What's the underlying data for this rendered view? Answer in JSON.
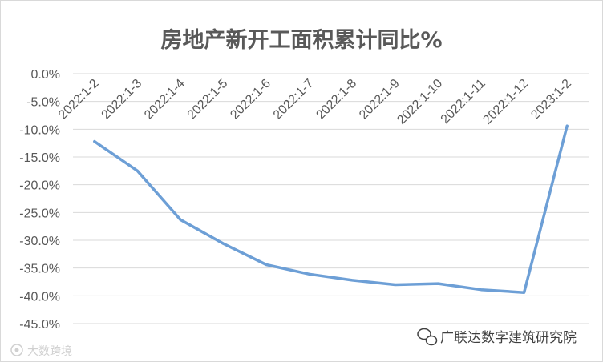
{
  "chart_data": {
    "type": "line",
    "title": "房地产新开工面积累计同比%",
    "categories": [
      "2022:1-2",
      "2022:1-3",
      "2022:1-4",
      "2022:1-5",
      "2022:1-6",
      "2022:1-7",
      "2022:1-8",
      "2022:1-9",
      "2022:1-10",
      "2022:1-11",
      "2022:1-12",
      "2023:1-2"
    ],
    "series": [
      {
        "values": [
          -12.2,
          -17.5,
          -26.3,
          -30.6,
          -34.4,
          -36.1,
          -37.2,
          -38.0,
          -37.8,
          -38.9,
          -39.4,
          -9.4
        ]
      }
    ],
    "ylim": [
      -45,
      0
    ],
    "yticks": [
      "0.0%",
      "-5.0%",
      "-10.0%",
      "-15.0%",
      "-20.0%",
      "-25.0%",
      "-30.0%",
      "-35.0%",
      "-40.0%",
      "-45.0%"
    ],
    "line_color": "#6d9fd6",
    "grid": true,
    "legend": "none"
  },
  "watermarks": {
    "right": "广联达数字建筑研究院",
    "left": "大数跨境"
  }
}
